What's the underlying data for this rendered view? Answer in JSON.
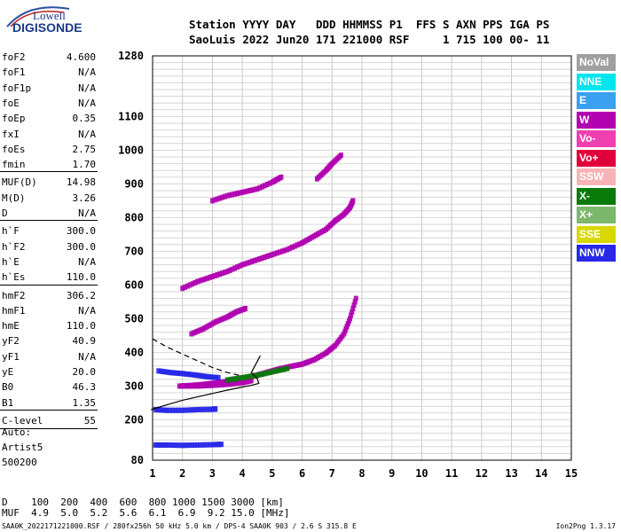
{
  "logo": {
    "line1": "Lowell",
    "line2": "DIGISONDE"
  },
  "header": {
    "row1": "Station YYYY DAY   DDD HHMMSS P1  FFS S AXN PPS IGA PS",
    "row2": "SaoLuis 2022 Jun20 171 221000 RSF     1 715 100 00- 11"
  },
  "params_group1": [
    {
      "name": "foF2",
      "value": "4.600"
    },
    {
      "name": "foF1",
      "value": "N/A"
    },
    {
      "name": "foF1p",
      "value": "N/A"
    },
    {
      "name": "foE",
      "value": "N/A"
    },
    {
      "name": "foEp",
      "value": "0.35"
    },
    {
      "name": "fxI",
      "value": "N/A"
    },
    {
      "name": "foEs",
      "value": "2.75"
    },
    {
      "name": "fmin",
      "value": "1.70"
    }
  ],
  "params_group2": [
    {
      "name": "MUF(D)",
      "value": "14.98"
    },
    {
      "name": "M(D)",
      "value": "3.26"
    },
    {
      "name": "D",
      "value": "N/A"
    }
  ],
  "params_group3": [
    {
      "name": "h`F",
      "value": "300.0"
    },
    {
      "name": "h`F2",
      "value": "300.0"
    },
    {
      "name": "h`E",
      "value": "N/A"
    },
    {
      "name": "h`Es",
      "value": "110.0"
    }
  ],
  "params_group4": [
    {
      "name": "hmF2",
      "value": "306.2"
    },
    {
      "name": "hmF1",
      "value": "N/A"
    },
    {
      "name": "hmE",
      "value": "110.0"
    },
    {
      "name": "yF2",
      "value": "40.9"
    },
    {
      "name": "yF1",
      "value": "N/A"
    },
    {
      "name": "yE",
      "value": "20.0"
    },
    {
      "name": "B0",
      "value": "46.3"
    },
    {
      "name": "B1",
      "value": "1.35"
    }
  ],
  "params_group5": [
    {
      "name": "C-level",
      "value": "55"
    }
  ],
  "autoscaling": {
    "line1": "Auto:",
    "line2": "Artist5",
    "line3": "500200"
  },
  "legend": [
    {
      "label": "NoVal",
      "color": "#a0a0a0"
    },
    {
      "label": "NNE",
      "color": "#00e5ee"
    },
    {
      "label": "E",
      "color": "#3aa0f0"
    },
    {
      "label": "W",
      "color": "#b000b0"
    },
    {
      "label": "Vo-",
      "color": "#f040b0"
    },
    {
      "label": "Vo+",
      "color": "#e0003c"
    },
    {
      "label": "SSW",
      "color": "#f8b4b4"
    },
    {
      "label": "X-",
      "color": "#0a7a0a"
    },
    {
      "label": "X+",
      "color": "#7cb86c"
    },
    {
      "label": "SSE",
      "color": "#d8d800"
    },
    {
      "label": "NNW",
      "color": "#2828e8"
    }
  ],
  "distance_table": {
    "row1": "D    100  200  400  600  800 1000 1500 3000 [km]",
    "row2": "MUF  4.9  5.0  5.2  5.6  6.1  6.9  9.2 15.0 [MHz]"
  },
  "footer": {
    "left": "SAA0K_2022171221000.RSF / 280fx256h 50 kHz 5.0 km / DPS-4 SAA0K 903 / 2.6 S 315.8 E",
    "right": "Ion2Png 1.3.17"
  },
  "chart_data": {
    "type": "scatter",
    "title": "",
    "xlabel": "",
    "ylabel": "",
    "xlim": [
      1,
      15
    ],
    "ylim": [
      80,
      1280
    ],
    "x_ticks": [
      1,
      2,
      3,
      4,
      5,
      6,
      7,
      8,
      9,
      10,
      11,
      12,
      13,
      14,
      15
    ],
    "y_ticks": [
      80,
      200,
      300,
      400,
      500,
      600,
      700,
      800,
      900,
      1000,
      1100,
      1280
    ],
    "grid": true,
    "colors": {
      "o_trace": "#b000b0",
      "es_trace": "#2828e8",
      "x_trace": "#0a7a0a",
      "vo_plus": "#e0003c",
      "ssw": "#f8b4b4"
    },
    "series": [
      {
        "color_key": "o_trace",
        "points": [
          [
            1.9,
            300
          ],
          [
            2.3,
            302
          ],
          [
            2.8,
            306
          ],
          [
            3.2,
            310
          ],
          [
            3.6,
            315
          ],
          [
            4.0,
            322
          ],
          [
            4.4,
            330
          ],
          [
            4.8,
            340
          ],
          [
            5.2,
            350
          ],
          [
            5.6,
            358
          ],
          [
            6.0,
            365
          ],
          [
            6.4,
            378
          ],
          [
            6.8,
            398
          ],
          [
            7.1,
            420
          ],
          [
            7.4,
            455
          ],
          [
            7.6,
            500
          ],
          [
            7.8,
            560
          ]
        ]
      },
      {
        "color_key": "o_trace",
        "points": [
          [
            2.0,
            300
          ],
          [
            2.5,
            300
          ],
          [
            3.0,
            302
          ],
          [
            3.5,
            305
          ],
          [
            4.0,
            310
          ],
          [
            4.3,
            316
          ]
        ]
      },
      {
        "color_key": "o_trace",
        "points": [
          [
            2.3,
            455
          ],
          [
            2.7,
            470
          ],
          [
            3.1,
            490
          ],
          [
            3.5,
            505
          ],
          [
            3.8,
            520
          ],
          [
            4.1,
            530
          ]
        ]
      },
      {
        "color_key": "o_trace",
        "points": [
          [
            2.0,
            590
          ],
          [
            2.5,
            610
          ],
          [
            3.0,
            625
          ],
          [
            3.5,
            640
          ],
          [
            4.0,
            660
          ],
          [
            4.5,
            675
          ],
          [
            5.0,
            690
          ],
          [
            5.5,
            705
          ],
          [
            6.0,
            725
          ],
          [
            6.4,
            745
          ],
          [
            6.8,
            765
          ],
          [
            7.1,
            790
          ],
          [
            7.4,
            810
          ],
          [
            7.6,
            830
          ],
          [
            7.7,
            850
          ]
        ]
      },
      {
        "color_key": "o_trace",
        "points": [
          [
            3.0,
            850
          ],
          [
            3.5,
            865
          ],
          [
            4.0,
            875
          ],
          [
            4.5,
            885
          ],
          [
            5.0,
            905
          ],
          [
            5.3,
            920
          ]
        ]
      },
      {
        "color_key": "o_trace",
        "points": [
          [
            6.5,
            915
          ],
          [
            6.8,
            940
          ],
          [
            7.0,
            960
          ],
          [
            7.3,
            985
          ]
        ]
      },
      {
        "color_key": "es_trace",
        "points": [
          [
            1.1,
            230
          ],
          [
            1.5,
            228
          ],
          [
            2.0,
            228
          ],
          [
            2.5,
            230
          ],
          [
            3.0,
            231
          ],
          [
            3.1,
            232
          ]
        ]
      },
      {
        "color_key": "es_trace",
        "points": [
          [
            1.1,
            125
          ],
          [
            1.5,
            125
          ],
          [
            2.0,
            124
          ],
          [
            2.5,
            125
          ],
          [
            3.0,
            126
          ],
          [
            3.3,
            127
          ]
        ]
      },
      {
        "color_key": "es_trace",
        "points": [
          [
            1.2,
            345
          ],
          [
            1.6,
            340
          ],
          [
            2.0,
            337
          ],
          [
            2.4,
            333
          ],
          [
            2.8,
            328
          ],
          [
            3.2,
            325
          ]
        ]
      },
      {
        "color_key": "x_trace",
        "points": [
          [
            3.5,
            318
          ],
          [
            4.0,
            325
          ],
          [
            4.5,
            332
          ],
          [
            5.0,
            342
          ],
          [
            5.5,
            352
          ]
        ]
      }
    ],
    "profile_solid": [
      [
        0.95,
        230
      ],
      [
        1.5,
        245
      ],
      [
        2.0,
        258
      ],
      [
        2.5,
        268
      ],
      [
        3.0,
        278
      ],
      [
        3.5,
        288
      ],
      [
        4.0,
        297
      ],
      [
        4.3,
        302
      ],
      [
        4.55,
        308
      ],
      [
        4.5,
        322
      ],
      [
        4.3,
        340
      ],
      [
        4.6,
        390
      ]
    ],
    "profile_dashed": [
      [
        1.0,
        440
      ],
      [
        1.5,
        415
      ],
      [
        2.0,
        395
      ],
      [
        2.5,
        375
      ],
      [
        3.0,
        355
      ],
      [
        3.5,
        340
      ],
      [
        4.0,
        330
      ]
    ]
  }
}
